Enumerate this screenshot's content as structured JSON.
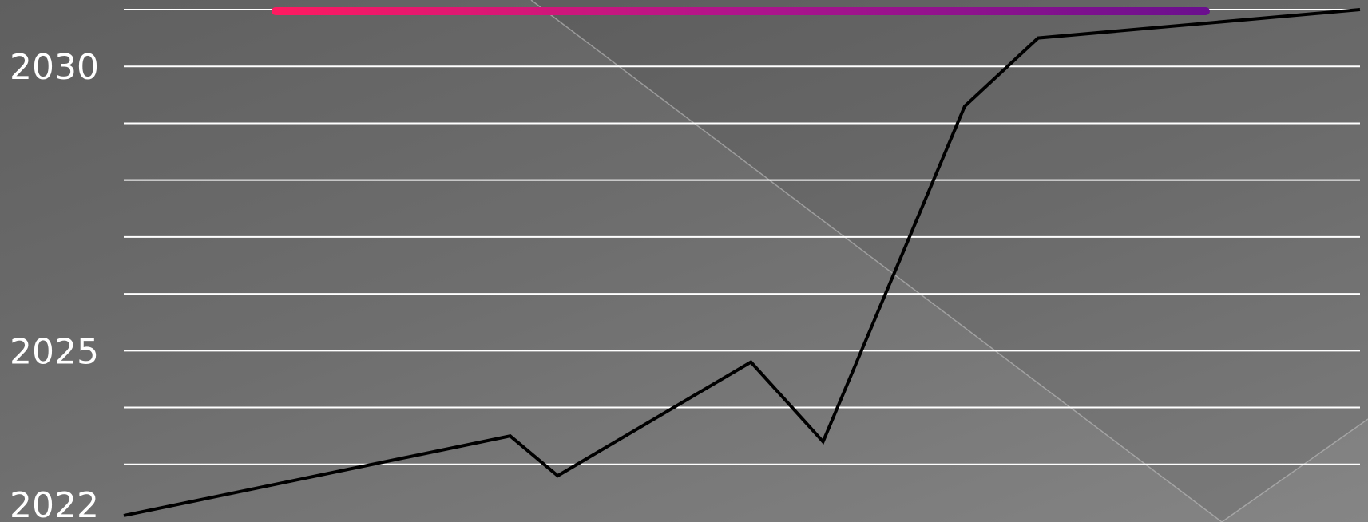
{
  "chart_data": {
    "type": "line",
    "title": "",
    "xlabel": "",
    "ylabel": "",
    "ylim": [
      2022,
      2031
    ],
    "y_ticks": [
      2030,
      2025,
      2022
    ],
    "grid": true,
    "grid_step": 1,
    "series": [
      {
        "color": "#000000",
        "points": [
          {
            "x": 0,
            "y": 2022.1
          },
          {
            "x": 3,
            "y": 2023.5
          },
          {
            "x": 3.37,
            "y": 2022.8
          },
          {
            "x": 4.87,
            "y": 2024.8
          },
          {
            "x": 5.43,
            "y": 2023.4
          },
          {
            "x": 6.53,
            "y": 2029.3
          },
          {
            "x": 7.1,
            "y": 2030.5
          },
          {
            "x": 9.6,
            "y": 2031
          }
        ]
      }
    ],
    "top_bar_colors": [
      "#ff1a60",
      "#b0148c",
      "#6a0f8e"
    ]
  }
}
